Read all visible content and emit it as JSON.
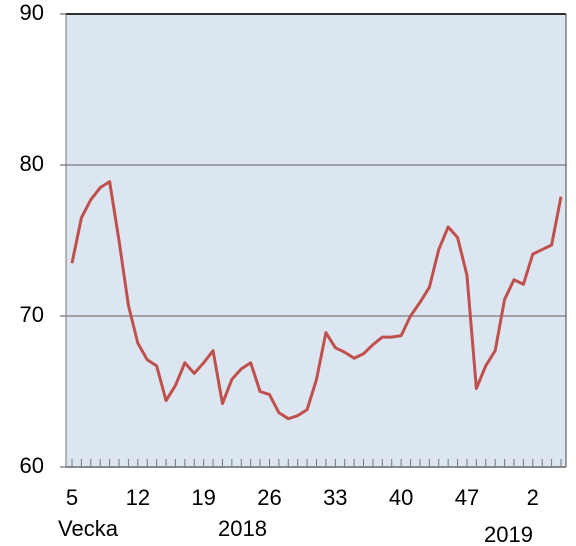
{
  "chart_data": {
    "type": "line",
    "categories": [
      "5",
      null,
      null,
      null,
      null,
      null,
      null,
      "12",
      null,
      null,
      null,
      null,
      null,
      null,
      "19",
      null,
      null,
      null,
      null,
      null,
      null,
      "26",
      null,
      null,
      null,
      null,
      null,
      null,
      "33",
      null,
      null,
      null,
      null,
      null,
      null,
      "40",
      null,
      null,
      null,
      null,
      null,
      null,
      "47",
      null,
      null,
      null,
      null,
      null,
      null,
      "2",
      null,
      null,
      null
    ],
    "series": [
      {
        "name": null,
        "color": "#c0504d",
        "values": [
          73.5,
          76.5,
          77.7,
          78.5,
          78.9,
          75.0,
          70.7,
          68.2,
          67.1,
          66.7,
          64.4,
          65.4,
          66.9,
          66.2,
          66.9,
          67.7,
          64.2,
          65.8,
          66.5,
          66.9,
          65.0,
          64.8,
          63.6,
          63.2,
          63.4,
          63.8,
          65.8,
          68.9,
          67.9,
          67.6,
          67.2,
          67.5,
          68.1,
          68.6,
          68.6,
          68.7,
          70.0,
          70.9,
          71.9,
          74.4,
          75.9,
          75.2,
          72.7,
          65.2,
          66.7,
          67.7,
          71.1,
          72.4,
          72.1,
          74.1,
          74.4,
          74.7,
          77.9
        ]
      }
    ],
    "ylim": [
      60,
      90
    ],
    "yticks": [
      60,
      70,
      80,
      90
    ],
    "grid": true,
    "annotations": [
      "Vecka",
      "2018",
      "2019"
    ],
    "background": "#dce6f0"
  }
}
